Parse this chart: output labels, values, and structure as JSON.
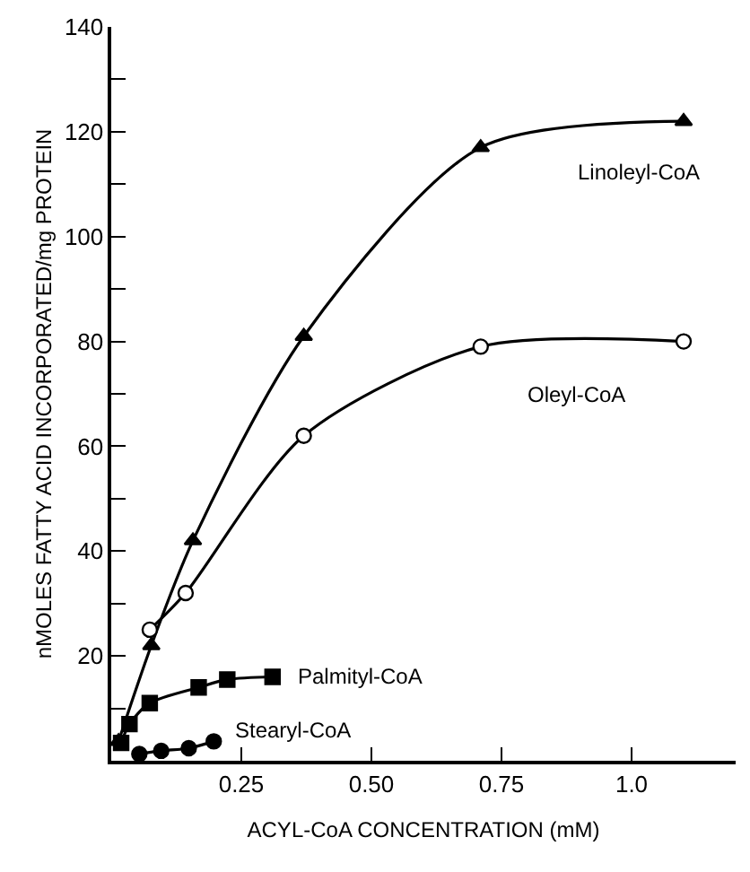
{
  "chart_data": {
    "type": "line",
    "xlabel": "ACYL-CoA CONCENTRATION (mM)",
    "ylabel": "nMOLES FATTY ACID INCORPORATED/mg PROTEIN",
    "xlim": [
      0,
      1.2
    ],
    "ylim": [
      0,
      140
    ],
    "xticks": [
      {
        "value": 0.25,
        "label": "0.25"
      },
      {
        "value": 0.5,
        "label": "0.50"
      },
      {
        "value": 0.75,
        "label": "0.75"
      },
      {
        "value": 1.0,
        "label": "1.0"
      }
    ],
    "yticks": [
      {
        "value": 10,
        "label": null
      },
      20,
      {
        "value": 30,
        "label": null
      },
      40,
      {
        "value": 50,
        "label": null
      },
      60,
      {
        "value": 70,
        "label": null
      },
      80,
      {
        "value": 90,
        "label": null
      },
      100,
      {
        "value": 110,
        "label": null
      },
      120,
      {
        "value": 130,
        "label": null
      },
      140
    ],
    "legend": false,
    "line_style": "solid",
    "series": [
      {
        "name": "Linoleyl-CoA",
        "color": "#000000",
        "marker": "triangle",
        "x": [
          0.014,
          0.077,
          0.157,
          0.37,
          0.71,
          1.1
        ],
        "values": [
          3.7,
          22,
          42,
          81,
          117,
          122
        ]
      },
      {
        "name": "Oleyl-CoA",
        "color": "#000000",
        "marker": "circle",
        "x": [
          0.074,
          0.143,
          0.37,
          0.71,
          1.1
        ],
        "values": [
          25,
          32,
          62,
          79,
          80
        ]
      },
      {
        "name": "Palmityl-CoA",
        "color": "#000000",
        "marker": "square",
        "x": [
          0.019,
          0.035,
          0.074,
          0.168,
          0.223,
          0.31
        ],
        "values": [
          3.4,
          7,
          11,
          14,
          15.5,
          16
        ]
      },
      {
        "name": "Stearyl-CoA",
        "color": "#000000",
        "marker": "circle",
        "x": [
          0.054,
          0.096,
          0.149,
          0.197
        ],
        "values": [
          1.3,
          1.9,
          2.4,
          3.7
        ]
      }
    ]
  }
}
